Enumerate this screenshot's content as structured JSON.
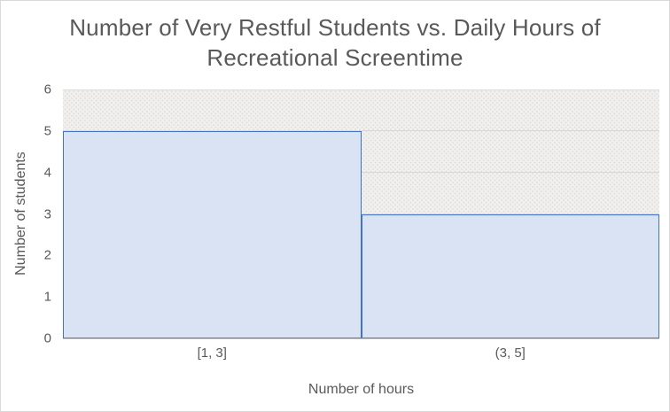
{
  "chart_data": {
    "type": "bar",
    "subtype": "histogram",
    "title": "Number of Very Restful Students vs. Daily Hours of Recreational Screentime",
    "title_lines": [
      "Number of Very Restful Students vs. Daily Hours of",
      "Recreational Screentime"
    ],
    "categories": [
      "[1, 3]",
      "(3, 5]"
    ],
    "values": [
      5,
      3
    ],
    "xlabel": "Number of hours",
    "ylabel": "Number of students",
    "ylim": [
      0,
      6
    ],
    "yticks": [
      0,
      1,
      2,
      3,
      4,
      5,
      6
    ],
    "gap_width_pct": 0,
    "grid": "horizontal-major",
    "legend": "none",
    "colors": {
      "bar_fill": "#dae3f3",
      "bar_border": "#4472c4",
      "text": "#595959",
      "gridline": "#d9d9d9",
      "chart_border": "#d9d9d9",
      "plot_pattern_bg": "#f1f0ee",
      "plot_pattern_dot": "#dddcd9"
    }
  }
}
